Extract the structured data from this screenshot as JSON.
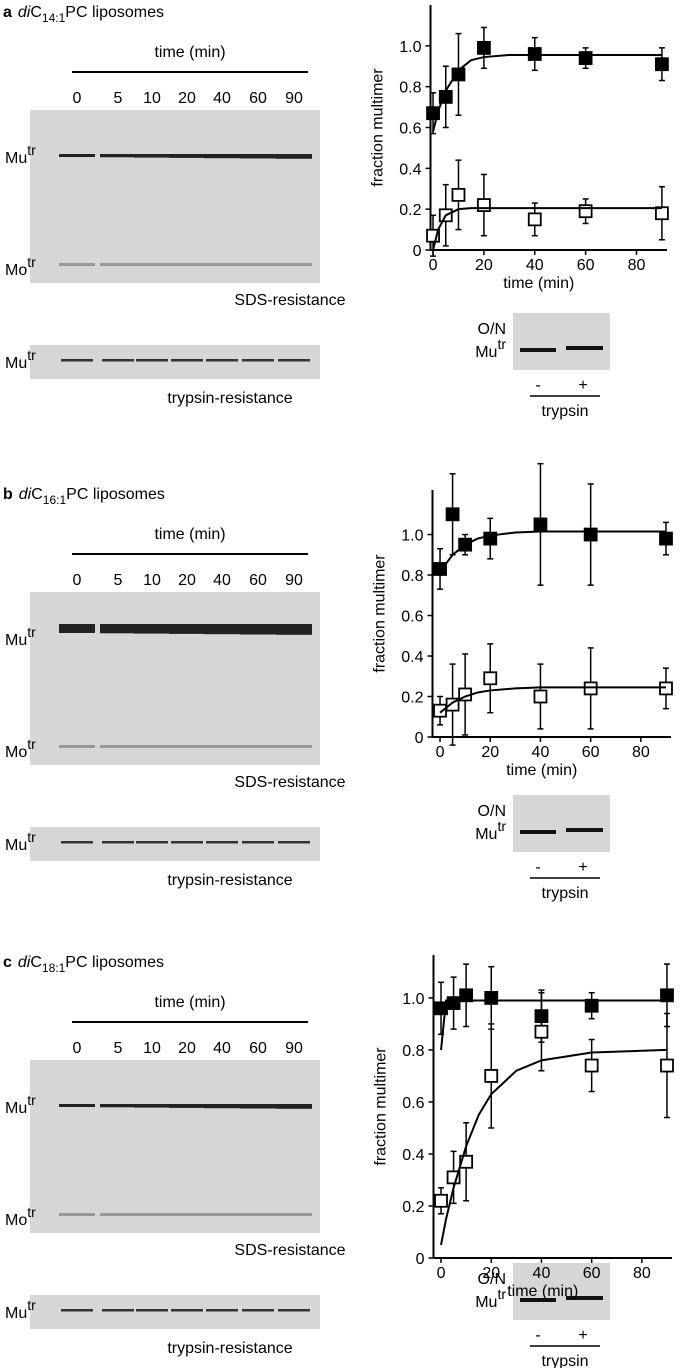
{
  "panels": [
    {
      "letter": "a",
      "title": {
        "italic": "di",
        "main": "C",
        "sub": "14:1",
        "rest": "PC liposomes"
      },
      "gel": {
        "time_label": "time (min)",
        "lanes": [
          0,
          5,
          10,
          20,
          40,
          60,
          90
        ],
        "multimer": {
          "base": "Mu",
          "sup": "tr"
        },
        "monomer": {
          "base": "Mo",
          "sup": "tr"
        },
        "sds_label": "SDS-resistance",
        "trypsin_label": "trypsin-resistance"
      },
      "inset": {
        "on": "O/N",
        "band": {
          "base": "Mu",
          "sup": "tr"
        },
        "lanes": [
          "-",
          "+"
        ],
        "label": "trypsin"
      },
      "chart_data": {
        "type": "scatter",
        "xlabel": "time (min)",
        "ylabel": "fraction multimer",
        "xlim": [
          -1,
          92
        ],
        "ylim": [
          0,
          1.2
        ],
        "xticks": [
          0,
          20,
          40,
          60,
          80
        ],
        "yticks": [
          0,
          0.2,
          0.4,
          0.6,
          0.8,
          {
            "value": 1,
            "label": "1.0"
          }
        ],
        "series": [
          {
            "style": "filled-square",
            "color": "#000000",
            "x": [
              0,
              5,
              10,
              20,
              40,
              60,
              90
            ],
            "values": [
              0.67,
              0.75,
              0.86,
              0.99,
              0.96,
              0.94,
              0.91
            ],
            "errors": [
              0.1,
              0.15,
              0.2,
              0.1,
              0.08,
              0.05,
              0.08
            ]
          },
          {
            "style": "open-square",
            "color": "#000000",
            "x": [
              0,
              5,
              10,
              20,
              40,
              60,
              90
            ],
            "values": [
              0.07,
              0.17,
              0.27,
              0.22,
              0.15,
              0.19,
              0.18
            ],
            "errors": [
              0.1,
              0.15,
              0.17,
              0.15,
              0.08,
              0.06,
              0.13
            ]
          },
          {
            "style": "line",
            "color": "#000000",
            "x": [
              0,
              2,
              5,
              10,
              15,
              20,
              30,
              40,
              60,
              90
            ],
            "values": [
              0.58,
              0.68,
              0.78,
              0.88,
              0.93,
              0.945,
              0.955,
              0.955,
              0.955,
              0.955
            ]
          },
          {
            "style": "line",
            "color": "#000000",
            "x": [
              0,
              2,
              5,
              10,
              15,
              20,
              30,
              40,
              60,
              90
            ],
            "values": [
              0,
              0.1,
              0.17,
              0.2,
              0.205,
              0.205,
              0.205,
              0.205,
              0.205,
              0.205
            ]
          }
        ]
      }
    },
    {
      "letter": "b",
      "title": {
        "italic": "di",
        "main": "C",
        "sub": "16:1",
        "rest": "PC liposomes"
      },
      "gel": {
        "time_label": "time (min)",
        "lanes": [
          0,
          5,
          10,
          20,
          40,
          60,
          90
        ],
        "multimer": {
          "base": "Mu",
          "sup": "tr"
        },
        "monomer": {
          "base": "Mo",
          "sup": "tr"
        },
        "sds_label": "SDS-resistance",
        "trypsin_label": "trypsin-resistance"
      },
      "inset": {
        "on": "O/N",
        "band": {
          "base": "Mu",
          "sup": "tr"
        },
        "lanes": [
          "-",
          "+"
        ],
        "label": "trypsin"
      },
      "chart_data": {
        "type": "scatter",
        "xlabel": "time (min)",
        "ylabel": "fraction multimer",
        "xlim": [
          -3,
          92
        ],
        "ylim": [
          0,
          1.22
        ],
        "xticks": [
          0,
          20,
          40,
          60,
          80
        ],
        "yticks": [
          0,
          0.2,
          0.4,
          0.6,
          0.8,
          {
            "value": 1,
            "label": "1.0"
          }
        ],
        "series": [
          {
            "style": "filled-square",
            "color": "#000000",
            "x": [
              0,
              5,
              10,
              20,
              40,
              60,
              90
            ],
            "values": [
              0.83,
              1.1,
              0.95,
              0.98,
              1.05,
              1.0,
              0.98
            ],
            "errors": [
              0.1,
              0.2,
              0.05,
              0.1,
              0.3,
              0.25,
              0.08
            ]
          },
          {
            "style": "open-square",
            "color": "#000000",
            "x": [
              0,
              5,
              10,
              20,
              40,
              60,
              90
            ],
            "values": [
              0.13,
              0.16,
              0.21,
              0.29,
              0.2,
              0.24,
              0.24
            ],
            "errors": [
              0.07,
              0.2,
              0.2,
              0.17,
              0.16,
              0.2,
              0.1
            ]
          },
          {
            "style": "line",
            "color": "#000000",
            "x": [
              0,
              2,
              5,
              10,
              15,
              20,
              30,
              40,
              60,
              90
            ],
            "values": [
              0.8,
              0.85,
              0.9,
              0.95,
              0.98,
              0.995,
              1.01,
              1.015,
              1.015,
              1.015
            ]
          },
          {
            "style": "line",
            "color": "#000000",
            "x": [
              0,
              2,
              5,
              10,
              15,
              20,
              30,
              40,
              60,
              90
            ],
            "values": [
              0.12,
              0.14,
              0.17,
              0.2,
              0.22,
              0.23,
              0.24,
              0.245,
              0.245,
              0.245
            ]
          }
        ]
      }
    },
    {
      "letter": "c",
      "title": {
        "italic": "di",
        "main": "C",
        "sub": "18:1",
        "rest": "PC liposomes"
      },
      "gel": {
        "time_label": "time (min)",
        "lanes": [
          0,
          5,
          10,
          20,
          40,
          60,
          90
        ],
        "multimer": {
          "base": "Mu",
          "sup": "tr"
        },
        "monomer": {
          "base": "Mo",
          "sup": "tr"
        },
        "sds_label": "SDS-resistance",
        "trypsin_label": "trypsin-resistance"
      },
      "inset": {
        "on": "O/N",
        "band": {
          "base": "Mu",
          "sup": "tr"
        },
        "lanes": [
          "-",
          "+"
        ],
        "label": "trypsin"
      },
      "chart_data": {
        "type": "scatter",
        "xlabel": "time (min)",
        "ylabel": "fraction multimer",
        "xlim": [
          -3,
          92
        ],
        "ylim": [
          0,
          1.165
        ],
        "xticks": [
          0,
          20,
          40,
          60,
          80
        ],
        "yticks": [
          0,
          0.2,
          0.4,
          0.6,
          0.8,
          {
            "value": 1,
            "label": "1.0"
          }
        ],
        "series": [
          {
            "style": "filled-square",
            "color": "#000000",
            "x": [
              0,
              5,
              10,
              20,
              40,
              60,
              90
            ],
            "values": [
              0.96,
              0.98,
              1.01,
              1.0,
              0.93,
              0.97,
              1.01
            ],
            "errors": [
              0.1,
              0.1,
              0.12,
              0.12,
              0.1,
              0.05,
              0.12
            ]
          },
          {
            "style": "open-square",
            "color": "#000000",
            "x": [
              0,
              5,
              10,
              20,
              40,
              60,
              90
            ],
            "values": [
              0.22,
              0.31,
              0.37,
              0.7,
              0.87,
              0.74,
              0.74
            ],
            "errors": [
              0.05,
              0.1,
              0.15,
              0.2,
              0.15,
              0.1,
              0.2
            ]
          },
          {
            "style": "line",
            "color": "#000000",
            "x": [
              0,
              2,
              5,
              10,
              15,
              20,
              30,
              40,
              60,
              90
            ],
            "values": [
              0.8,
              0.99,
              0.99,
              0.99,
              0.99,
              0.99,
              0.99,
              0.99,
              0.99,
              0.99
            ]
          },
          {
            "style": "line",
            "color": "#000000",
            "x": [
              0,
              2,
              5,
              10,
              15,
              20,
              30,
              40,
              60,
              90
            ],
            "values": [
              0.05,
              0.15,
              0.27,
              0.43,
              0.55,
              0.63,
              0.72,
              0.76,
              0.79,
              0.8
            ]
          }
        ]
      }
    }
  ]
}
